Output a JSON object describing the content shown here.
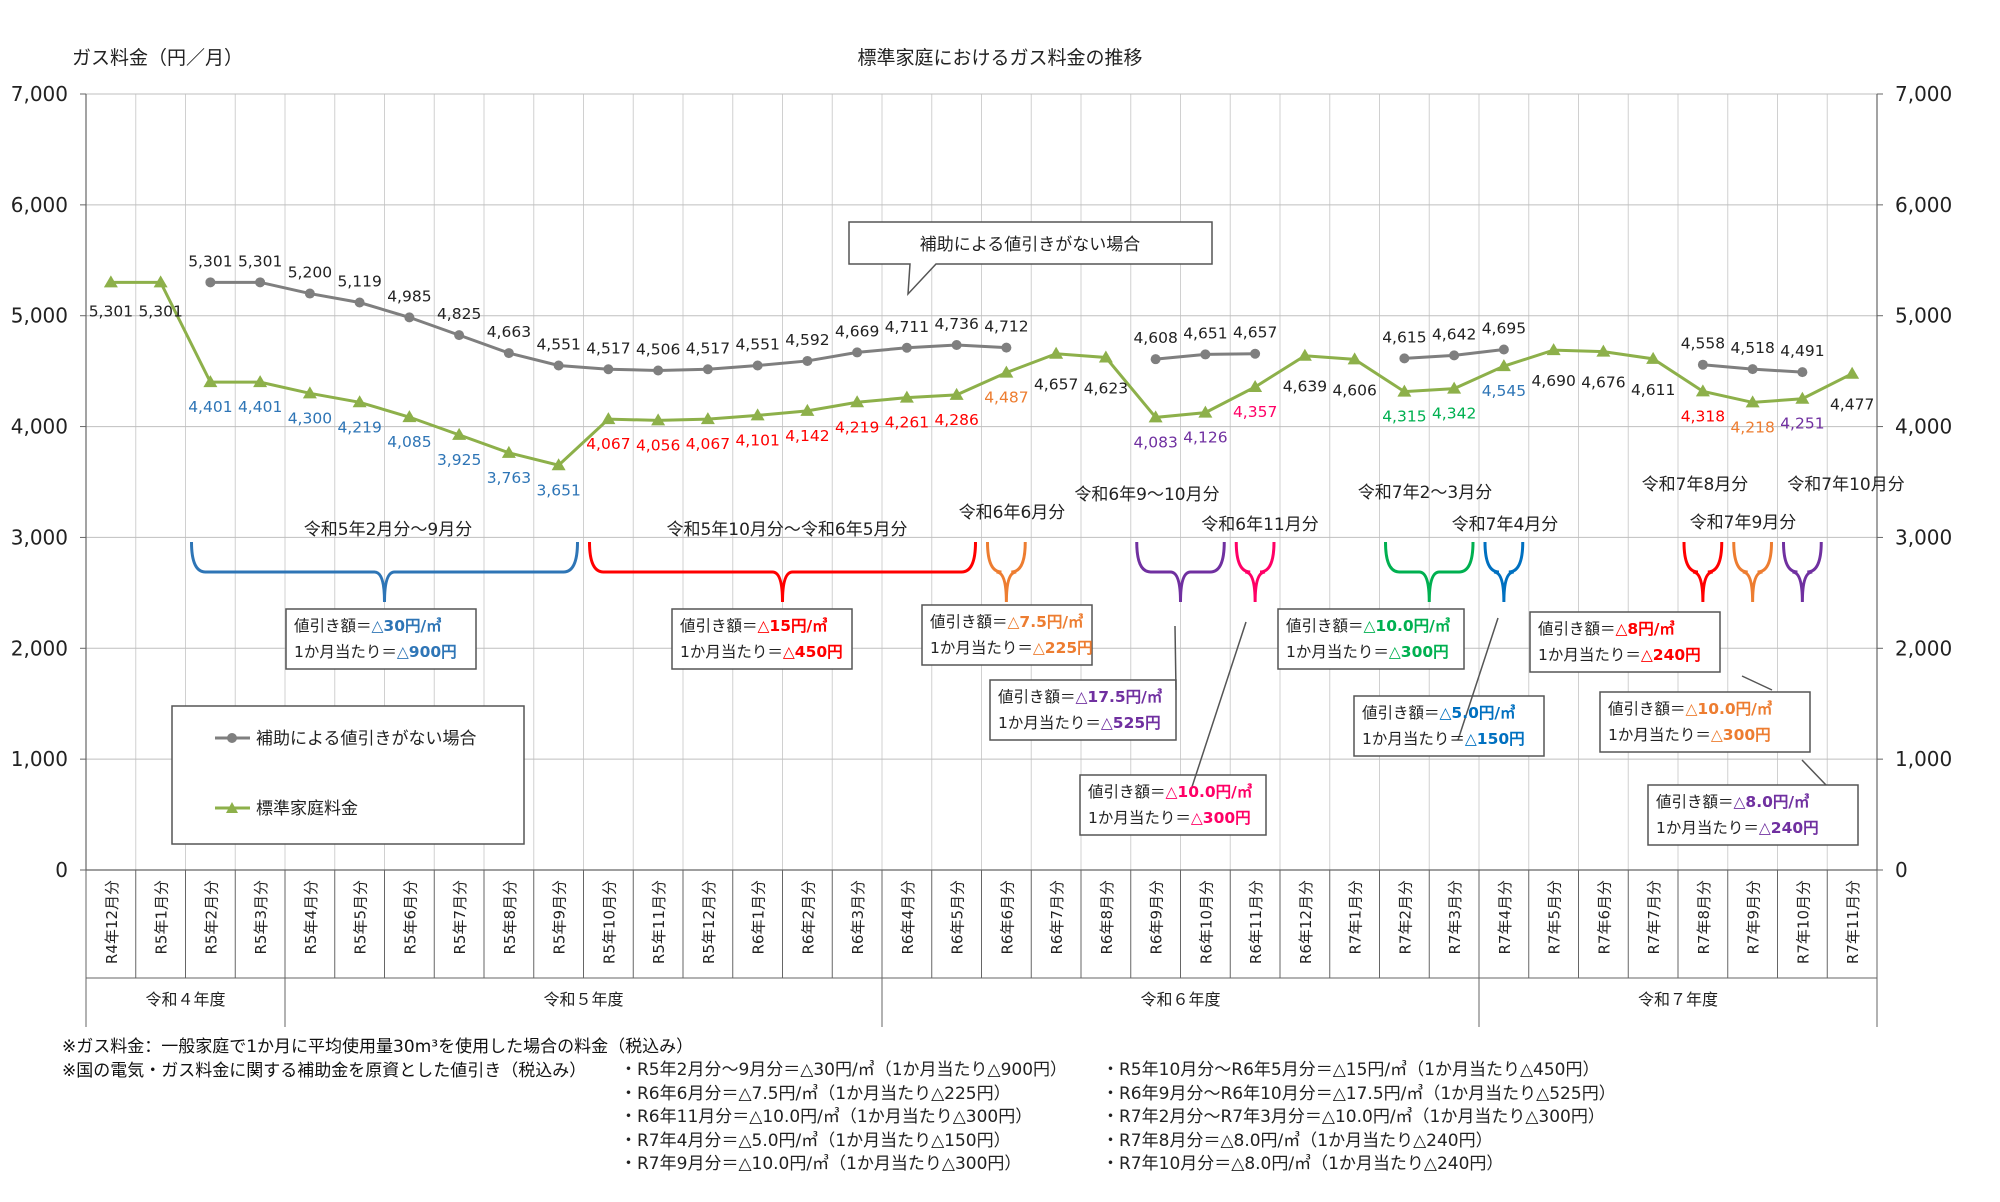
{
  "chart_data": {
    "type": "line",
    "title": "標準家庭におけるガス料金の推移",
    "ylabel": "ガス料金（円／月）",
    "ylim": [
      0,
      7000
    ],
    "yticks": [
      0,
      1000,
      2000,
      3000,
      4000,
      5000,
      6000,
      7000
    ],
    "ytick_labels": [
      "0",
      "1,000",
      "2,000",
      "3,000",
      "4,000",
      "5,000",
      "6,000",
      "7,000"
    ],
    "categories": [
      "R4年12月分",
      "R5年1月分",
      "R5年2月分",
      "R5年3月分",
      "R5年4月分",
      "R5年5月分",
      "R5年6月分",
      "R5年7月分",
      "R5年8月分",
      "R5年9月分",
      "R5年10月分",
      "R5年11月分",
      "R5年12月分",
      "R6年1月分",
      "R6年2月分",
      "R6年3月分",
      "R6年4月分",
      "R6年5月分",
      "R6年6月分",
      "R6年7月分",
      "R6年8月分",
      "R6年9月分",
      "R6年10月分",
      "R6年11月分",
      "R6年12月分",
      "R7年1月分",
      "R7年2月分",
      "R7年3月分",
      "R7年4月分",
      "R7年5月分",
      "R7年6月分",
      "R7年7月分",
      "R7年8月分",
      "R7年9月分",
      "R7年10月分",
      "R7年11月分"
    ],
    "fiscal_years": [
      {
        "label": "令和４年度",
        "start": 0,
        "end": 3
      },
      {
        "label": "令和５年度",
        "start": 4,
        "end": 15
      },
      {
        "label": "令和６年度",
        "start": 16,
        "end": 27
      },
      {
        "label": "令和７年度",
        "start": 28,
        "end": 35
      }
    ],
    "series": [
      {
        "name": "補助による値引きがない場合",
        "color": "#7f7f7f",
        "marker": "circle",
        "values": [
          null,
          null,
          5301,
          5301,
          5200,
          5119,
          4985,
          4825,
          4663,
          4551,
          4517,
          4506,
          4517,
          4551,
          4592,
          4669,
          4711,
          4736,
          4712,
          null,
          null,
          4608,
          4651,
          4657,
          null,
          null,
          4615,
          4642,
          4695,
          null,
          null,
          null,
          4558,
          4518,
          4491,
          null
        ],
        "labels": [
          null,
          null,
          "5,301",
          "5,301",
          "5,200",
          "5,119",
          "4,985",
          "4,825",
          "4,663",
          "4,551",
          "4,517",
          "4,506",
          "4,517",
          "4,551",
          "4,592",
          "4,669",
          "4,711",
          "4,736",
          "4,712",
          null,
          null,
          "4,608",
          "4,651",
          "4,657",
          null,
          null,
          "4,615",
          "4,642",
          "4,695",
          null,
          null,
          null,
          "4,558",
          "4,518",
          "4,491",
          null
        ]
      },
      {
        "name": "標準家庭料金",
        "color": "#8db04a",
        "marker": "triangle",
        "values": [
          5301,
          5301,
          4401,
          4401,
          4300,
          4219,
          4085,
          3925,
          3763,
          3651,
          4067,
          4056,
          4067,
          4101,
          4142,
          4219,
          4261,
          4286,
          4487,
          4657,
          4623,
          4083,
          4126,
          4357,
          4639,
          4606,
          4315,
          4342,
          4545,
          4690,
          4676,
          4611,
          4318,
          4218,
          4251,
          4477
        ],
        "labels": [
          "5,301",
          "5,301",
          "4,401",
          "4,401",
          "4,300",
          "4,219",
          "4,085",
          "3,925",
          "3,763",
          "3,651",
          "4,067",
          "4,056",
          "4,067",
          "4,101",
          "4,142",
          "4,219",
          "4,261",
          "4,286",
          "4,487",
          "4,657",
          "4,623",
          "4,083",
          "4,126",
          "4,357",
          "4,639",
          "4,606",
          "4,315",
          "4,342",
          "4,545",
          "4,690",
          "4,676",
          "4,611",
          "4,318",
          "4,218",
          "4,251",
          "4,477"
        ],
        "label_colors": [
          "#222222",
          "#222222",
          "#2e75b6",
          "#2e75b6",
          "#2e75b6",
          "#2e75b6",
          "#2e75b6",
          "#2e75b6",
          "#2e75b6",
          "#2e75b6",
          "#ff0000",
          "#ff0000",
          "#ff0000",
          "#ff0000",
          "#ff0000",
          "#ff0000",
          "#ff0000",
          "#ff0000",
          "#ed7d31",
          "#222222",
          "#222222",
          "#7030a0",
          "#7030a0",
          "#ff0066",
          "#222222",
          "#222222",
          "#00b050",
          "#00b050",
          "#2e75b6",
          "#222222",
          "#222222",
          "#222222",
          "#ff0000",
          "#ed7d31",
          "#7030a0",
          "#222222"
        ]
      }
    ],
    "callout": "補助による値引きがない場合",
    "periods": [
      {
        "label": "令和5年2月分～9月分",
        "start": 2,
        "end": 9,
        "color": "#2e75b6",
        "discount_label": "値引き額＝",
        "discount_value": "△30円/㎥",
        "monthly_label": "1か月当たり＝",
        "monthly_value": "△900円"
      },
      {
        "label": "令和5年10月分～令和6年5月分",
        "start": 10,
        "end": 17,
        "color": "#ff0000",
        "discount_label": "値引き額＝",
        "discount_value": "△15円/㎥",
        "monthly_label": "1か月当たり＝",
        "monthly_value": "△450円"
      },
      {
        "label": "令和6年6月分",
        "start": 18,
        "end": 18,
        "color": "#ed7d31",
        "discount_label": "値引き額＝",
        "discount_value": "△7.5円/㎥",
        "monthly_label": "1か月当たり＝",
        "monthly_value": "△225円"
      },
      {
        "label": "令和6年9～10月分",
        "start": 21,
        "end": 22,
        "color": "#7030a0",
        "discount_label": "値引き額＝",
        "discount_value": "△17.5円/㎥",
        "monthly_label": "1か月当たり＝",
        "monthly_value": "△525円"
      },
      {
        "label": "令和6年11月分",
        "start": 23,
        "end": 23,
        "color": "#ff0066",
        "discount_label": "値引き額＝",
        "discount_value": "△10.0円/㎥",
        "monthly_label": "1か月当たり＝",
        "monthly_value": "△300円"
      },
      {
        "label": "令和7年2～3月分",
        "start": 26,
        "end": 27,
        "color": "#00b050",
        "discount_label": "値引き額＝",
        "discount_value": "△10.0円/㎥",
        "monthly_label": "1か月当たり＝",
        "monthly_value": "△300円"
      },
      {
        "label": "令和7年4月分",
        "start": 28,
        "end": 28,
        "color": "#0070c0",
        "discount_label": "値引き額＝",
        "discount_value": "△5.0円/㎥",
        "monthly_label": "1か月当たり＝",
        "monthly_value": "△150円"
      },
      {
        "label": "令和7年8月分",
        "start": 32,
        "end": 32,
        "color": "#ff0000",
        "discount_label": "値引き額＝",
        "discount_value": "△8円/㎥",
        "monthly_label": "1か月当たり＝",
        "monthly_value": "△240円"
      },
      {
        "label": "令和7年9月分",
        "start": 33,
        "end": 33,
        "color": "#ed7d31",
        "discount_label": "値引き額＝",
        "discount_value": "△10.0円/㎥",
        "monthly_label": "1か月当たり＝",
        "monthly_value": "△300円"
      },
      {
        "label": "令和7年10月分",
        "start": 34,
        "end": 34,
        "color": "#7030a0",
        "discount_label": "値引き額＝",
        "discount_value": "△8.0円/㎥",
        "monthly_label": "1か月当たり＝",
        "monthly_value": "△240円"
      }
    ],
    "grid": true,
    "legend_position": "left"
  },
  "footnotes": {
    "note1": "※ガス料金：一般家庭で1か月に平均使用量30m³を使用した場合の料金（税込み）",
    "note2": "※国の電気・ガス料金に関する補助金を原資とした値引き（税込み）",
    "left_items": [
      "・R5年2月分～9月分＝△30円/㎥（1か月当たり△900円）",
      "・R6年6月分＝△7.5円/㎥（1か月当たり△225円）",
      "・R6年11月分＝△10.0円/㎥（1か月当たり△300円）",
      "・R7年4月分＝△5.0円/㎥（1か月当たり△150円）",
      "・R7年9月分＝△10.0円/㎥（1か月当たり△300円）"
    ],
    "right_items": [
      "・R5年10月分～R6年5月分＝△15円/㎥（1か月当たり△450円）",
      "・R6年9月分～R6年10月分＝△17.5円/㎥（1か月当たり△525円）",
      "・R7年2月分～R7年3月分＝△10.0円/㎥（1か月当たり△300円）",
      "・R7年8月分＝△8.0円/㎥（1か月当たり△240円）",
      "・R7年10月分＝△8.0円/㎥（1か月当たり△240円）"
    ]
  }
}
